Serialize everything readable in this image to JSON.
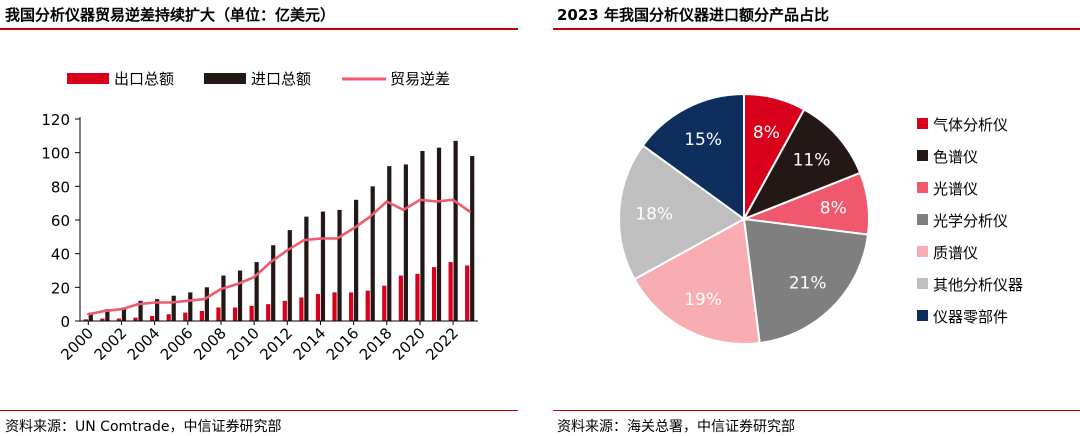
{
  "left": {
    "title": "我国分析仪器贸易逆差持续扩大（单位：亿美元）",
    "source": "资料来源：UN Comtrade，中信证券研究部"
  },
  "right": {
    "title": "2023 年我国分析仪器进口额分产品占比",
    "source": "资料来源：海关总署，中信证券研究部"
  },
  "colors": {
    "export": "#d9001b",
    "import": "#231815",
    "deficit": "#ef5a6e",
    "rule": "#c00000"
  },
  "chart_data": [
    {
      "type": "bar",
      "subtype": "bar+line",
      "title": "我国分析仪器贸易逆差持续扩大（单位：亿美元）",
      "x": [
        2000,
        2001,
        2002,
        2003,
        2004,
        2005,
        2006,
        2007,
        2008,
        2009,
        2010,
        2011,
        2012,
        2013,
        2014,
        2015,
        2016,
        2017,
        2018,
        2019,
        2020,
        2021,
        2022,
        2023
      ],
      "x_tick_labels": [
        "2000",
        "2002",
        "2004",
        "2006",
        "2008",
        "2010",
        "2012",
        "2014",
        "2016",
        "2018",
        "2020",
        "2022"
      ],
      "y_ticks": [
        0,
        20,
        40,
        60,
        80,
        100,
        120
      ],
      "ylim": [
        0,
        120
      ],
      "legend_position": "top",
      "grid": false,
      "series": [
        {
          "name": "出口总额",
          "kind": "bar",
          "color": "#d9001b",
          "values": [
            1,
            1.5,
            1.5,
            2,
            3,
            4,
            5,
            6,
            8,
            8,
            9,
            10,
            12,
            14,
            16,
            17,
            17,
            18,
            21,
            27,
            28,
            32,
            35,
            33
          ]
        },
        {
          "name": "进口总额",
          "kind": "bar",
          "color": "#231815",
          "values": [
            5,
            7,
            8,
            12,
            13,
            15,
            17,
            20,
            27,
            30,
            35,
            45,
            54,
            62,
            65,
            66,
            72,
            80,
            92,
            93,
            101,
            103,
            107,
            98
          ]
        },
        {
          "name": "贸易逆差",
          "kind": "line",
          "color": "#ef5a6e",
          "values": [
            4,
            6,
            7,
            10,
            11,
            11,
            12,
            13,
            19,
            22,
            26,
            35,
            42,
            48,
            49,
            49,
            55,
            62,
            71,
            66,
            72,
            71,
            72,
            65
          ]
        }
      ]
    },
    {
      "type": "pie",
      "title": "2023 年我国分析仪器进口额分产品占比",
      "legend_position": "right",
      "start_angle_deg": 0,
      "slices": [
        {
          "label": "气体分析仪",
          "value": 8,
          "display": "8%",
          "color": "#d9001b",
          "text_color": "#ffffff"
        },
        {
          "label": "色谱仪",
          "value": 11,
          "display": "11%",
          "color": "#231815",
          "text_color": "#ffffff"
        },
        {
          "label": "光谱仪",
          "value": 8,
          "display": "8%",
          "color": "#f0586d",
          "text_color": "#ffffff"
        },
        {
          "label": "光学分析仪",
          "value": 21,
          "display": "21%",
          "color": "#7f7f7f",
          "text_color": "#ffffff"
        },
        {
          "label": "质谱仪",
          "value": 19,
          "display": "19%",
          "color": "#f7adb2",
          "text_color": "#ffffff"
        },
        {
          "label": "其他分析仪器",
          "value": 18,
          "display": "18%",
          "color": "#bfbfbf",
          "text_color": "#ffffff"
        },
        {
          "label": "仪器零部件",
          "value": 15,
          "display": "15%",
          "color": "#0e2f5e",
          "text_color": "#ffffff"
        }
      ]
    }
  ]
}
